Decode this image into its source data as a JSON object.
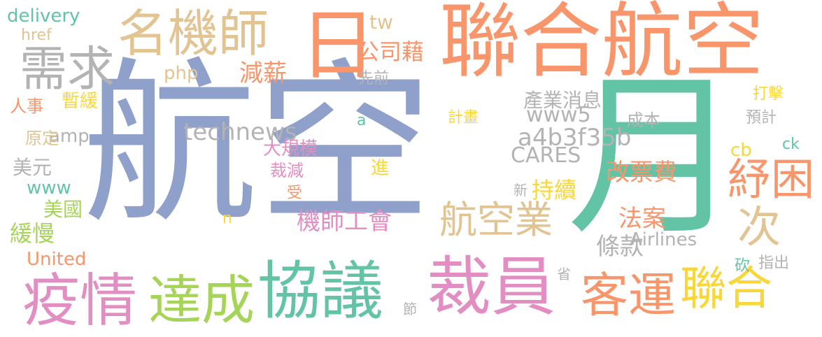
{
  "palette": {
    "blue": "#8fa0cb",
    "orange": "#f9956a",
    "green": "#62c3a5",
    "pink": "#e38ec2",
    "lime": "#a6d457",
    "yellow": "#f9d63a",
    "tan": "#e2c493",
    "gray": "#b3b3b3"
  },
  "words": [
    "航空",
    "月",
    "聯合航空",
    "日",
    "協議",
    "裁員",
    "疫情",
    "達成",
    "名機師",
    "需求",
    "客運",
    "聯合",
    "紓困",
    "次",
    "航空業",
    "機師工會",
    "條款",
    "法案",
    "改票費",
    "持續",
    "公司藉",
    "減薪",
    "產業消息",
    "technews",
    "a4b3f35b",
    "CARES",
    "www5",
    "delivery",
    "amp",
    "php",
    "tw",
    "美國",
    "緩慢",
    "美元",
    "原定",
    "人事",
    "暫緩",
    "href",
    "United",
    "www",
    "Airlines",
    "大規模",
    "裁減",
    "進",
    "成本",
    "預計",
    "打擊",
    "指出",
    "先前",
    "計畫",
    "受",
    "cb",
    "ck",
    "砍",
    "省",
    "節",
    "新",
    "n",
    "a"
  ]
}
